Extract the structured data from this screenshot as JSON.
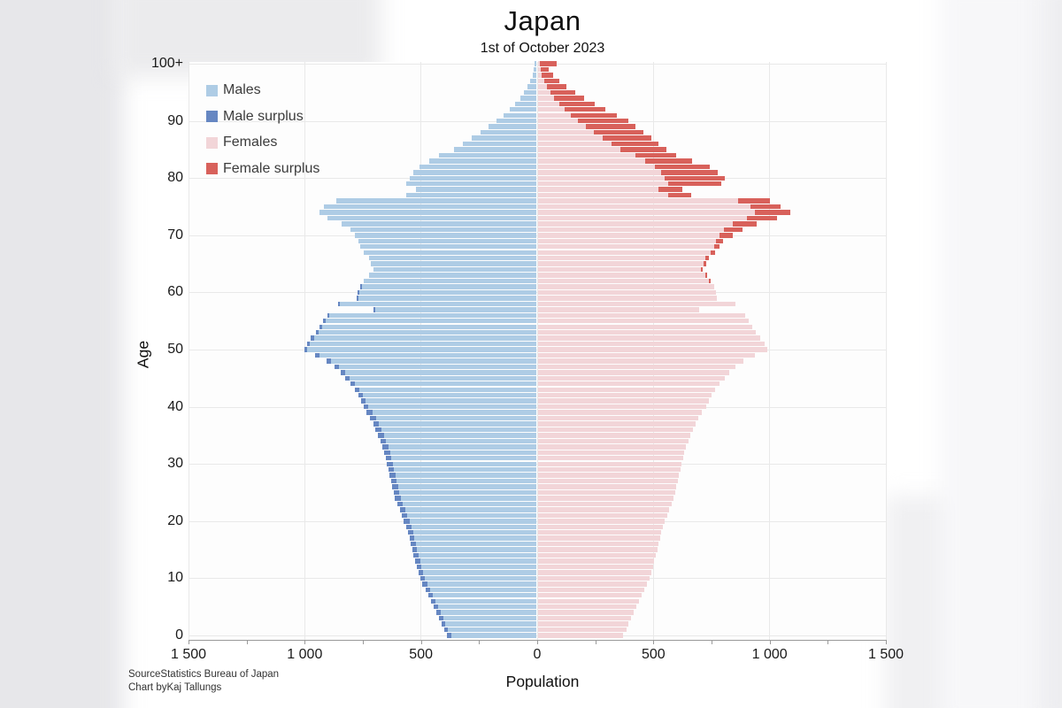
{
  "title": "Japan",
  "subtitle": "1st of October 2023",
  "legend": {
    "items": [
      {
        "id": "males",
        "label": "Males"
      },
      {
        "id": "male-surplus",
        "label": "Male surplus"
      },
      {
        "id": "females",
        "label": "Females"
      },
      {
        "id": "female-surplus",
        "label": "Female surplus"
      }
    ]
  },
  "axes": {
    "x_label": "Population",
    "y_label": "Age",
    "x_tick_labels": [
      "1 500",
      "1 000",
      "500",
      "0",
      "500",
      "1 000",
      "1 500"
    ],
    "y_tick_labels": [
      "0",
      "10",
      "20",
      "30",
      "40",
      "50",
      "60",
      "70",
      "80",
      "90",
      "100+"
    ]
  },
  "source": {
    "line1": "SourceStatistics Bureau of Japan",
    "line2": "Chart byKaj Tallungs"
  },
  "colors": {
    "male": "#aecce5",
    "male_surplus": "#6687c2",
    "female": "#f2d5d8",
    "female_surplus": "#d8615b",
    "gridline": "#e9e9e9",
    "axis": "#9a9a9a"
  },
  "chart_data": {
    "type": "bar",
    "variant": "population-pyramid",
    "title": "Japan",
    "subtitle": "1st of October 2023",
    "xlabel": "Population",
    "ylabel": "Age",
    "unit": "thousands of persons",
    "xlim": [
      -1500,
      1500
    ],
    "x_tick_step": 500,
    "ages": "single years 0 through 100+ (bottom to top)",
    "grid": true,
    "legend_position": "top-left",
    "series": [
      {
        "name": "Males",
        "values": [
          385,
          397,
          409,
          420,
          431,
          442,
          453,
          464,
          477,
          490,
          500,
          508,
          516,
          523,
          529,
          535,
          541,
          547,
          553,
          561,
          571,
          579,
          588,
          598,
          608,
          614,
          620,
          626,
          632,
          638,
          644,
          649,
          655,
          663,
          672,
          682,
          692,
          703,
          716,
          730,
          742,
          753,
          766,
          782,
          802,
          822,
          843,
          868,
          903,
          952,
          1000,
          988,
          970,
          950,
          932,
          918,
          900,
          700,
          855,
          775,
          768,
          758,
          742,
          722,
          702,
          712,
          722,
          742,
          757,
          766,
          780,
          800,
          840,
          900,
          935,
          915,
          860,
          560,
          520,
          560,
          545,
          530,
          505,
          460,
          420,
          356,
          318,
          280,
          242,
          206,
          172,
          142,
          115,
          91,
          70,
          53,
          38,
          26,
          17,
          11,
          10
        ]
      },
      {
        "name": "Females",
        "values": [
          368,
          380,
          391,
          402,
          413,
          424,
          434,
          445,
          458,
          470,
          479,
          487,
          495,
          501,
          507,
          513,
          519,
          525,
          531,
          539,
          547,
          555,
          564,
          574,
          583,
          589,
          595,
          601,
          607,
          613,
          619,
          624,
          630,
          638,
          647,
          657,
          667,
          678,
          691,
          705,
          723,
          734,
          747,
          763,
          783,
          803,
          824,
          849,
          885,
          935,
          988,
          976,
          958,
          939,
          921,
          908,
          891,
          692,
          848,
          769,
          765,
          757,
          744,
          727,
          710,
          723,
          737,
          761,
          780,
          796,
          840,
          880,
          940,
          1030,
          1085,
          1045,
          1000,
          660,
          620,
          790,
          805,
          775,
          740,
          665,
          595,
          554,
          520,
          487,
          454,
          420,
          388,
          340,
          292,
          245,
          200,
          160,
          124,
          93,
          67,
          46,
          81
        ]
      }
    ]
  }
}
